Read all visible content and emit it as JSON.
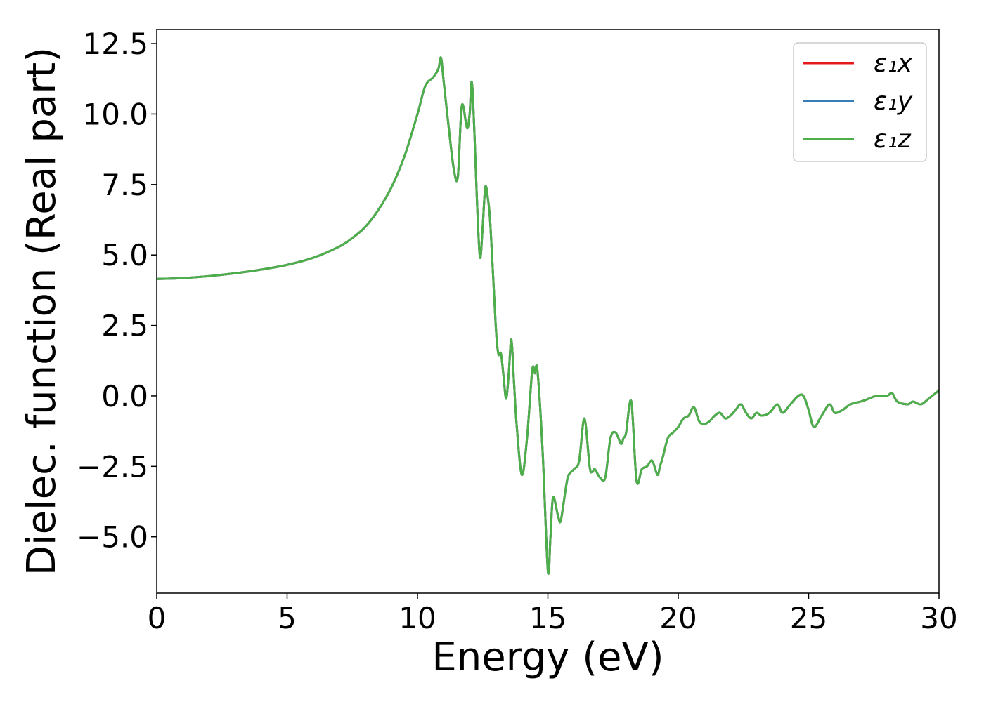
{
  "chart_data": {
    "type": "line",
    "title": "",
    "xlabel": "Energy (eV)",
    "ylabel": "Dielec. function (Real part)",
    "xlim": [
      0,
      30
    ],
    "ylim": [
      -7,
      13
    ],
    "xticks": [
      0,
      5,
      10,
      15,
      20,
      25,
      30
    ],
    "xtick_labels": [
      "0",
      "5",
      "10",
      "15",
      "20",
      "25",
      "30"
    ],
    "yticks": [
      -5,
      -2.5,
      0,
      2.5,
      5,
      7.5,
      10,
      12.5
    ],
    "ytick_labels": [
      "−5.0",
      "−2.5",
      "0.0",
      "2.5",
      "5.0",
      "7.5",
      "10.0",
      "12.5"
    ],
    "grid": false,
    "legend_position": "top-right",
    "series": [
      {
        "name": "ε₁x",
        "color": "#e41a1c",
        "x": [
          0,
          1,
          2,
          3,
          4,
          5,
          6,
          7,
          7.5,
          8,
          8.5,
          9,
          9.5,
          10,
          10.3,
          10.6,
          10.8,
          10.9,
          11.0,
          11.2,
          11.4,
          11.55,
          11.7,
          11.9,
          12.0,
          12.1,
          12.3,
          12.4,
          12.5,
          12.6,
          12.7,
          12.8,
          13.0,
          13.1,
          13.2,
          13.3,
          13.4,
          13.5,
          13.6,
          13.7,
          13.8,
          14.0,
          14.2,
          14.4,
          14.5,
          14.6,
          14.8,
          15.0,
          15.1,
          15.2,
          15.4,
          15.5,
          15.7,
          15.8,
          16.0,
          16.2,
          16.4,
          16.6,
          16.7,
          16.8,
          17.0,
          17.2,
          17.4,
          17.6,
          17.8,
          17.9,
          18.0,
          18.2,
          18.4,
          18.6,
          18.8,
          19.0,
          19.2,
          19.3,
          19.4,
          19.6,
          19.8,
          20.0,
          20.2,
          20.4,
          20.6,
          20.8,
          21.0,
          21.2,
          21.4,
          21.6,
          21.8,
          22.0,
          22.2,
          22.4,
          22.6,
          22.8,
          23.0,
          23.2,
          23.5,
          23.8,
          24.0,
          24.3,
          24.6,
          24.8,
          25.0,
          25.2,
          25.5,
          25.8,
          26.0,
          26.3,
          26.6,
          27.0,
          27.3,
          27.6,
          28.0,
          28.2,
          28.4,
          28.8,
          29.0,
          29.3,
          29.6,
          30.0
        ],
        "y": [
          4.15,
          4.18,
          4.25,
          4.35,
          4.48,
          4.65,
          4.9,
          5.3,
          5.6,
          6.0,
          6.6,
          7.4,
          8.5,
          10.0,
          11.0,
          11.3,
          11.6,
          12.0,
          11.2,
          9.5,
          8.0,
          7.8,
          10.3,
          9.5,
          10.0,
          11.0,
          6.5,
          4.9,
          6.0,
          7.4,
          7.0,
          6.0,
          2.5,
          1.5,
          1.5,
          0.7,
          -0.1,
          0.8,
          2.0,
          0.5,
          -1.0,
          -2.8,
          -1.5,
          0.9,
          0.8,
          0.9,
          -2.0,
          -6.2,
          -5.0,
          -3.6,
          -4.3,
          -4.4,
          -3.2,
          -2.8,
          -2.6,
          -2.3,
          -0.8,
          -2.5,
          -2.7,
          -2.6,
          -2.9,
          -2.9,
          -1.5,
          -1.3,
          -1.7,
          -1.5,
          -1.3,
          -0.2,
          -3.0,
          -2.6,
          -2.5,
          -2.3,
          -2.8,
          -2.5,
          -2.2,
          -1.5,
          -1.3,
          -1.1,
          -0.8,
          -0.7,
          -0.4,
          -0.9,
          -1.0,
          -0.9,
          -0.7,
          -0.6,
          -0.8,
          -0.7,
          -0.5,
          -0.3,
          -0.6,
          -0.8,
          -0.6,
          -0.7,
          -0.6,
          -0.3,
          -0.6,
          -0.3,
          0.0,
          0.0,
          -0.5,
          -1.1,
          -0.7,
          -0.3,
          -0.6,
          -0.5,
          -0.3,
          -0.2,
          -0.1,
          0.0,
          0.0,
          0.1,
          -0.2,
          -0.3,
          -0.2,
          -0.3,
          -0.1,
          0.2
        ]
      },
      {
        "name": "ε₁y",
        "color": "#377eb8",
        "x": [
          0,
          1,
          2,
          3,
          4,
          5,
          6,
          7,
          7.5,
          8,
          8.5,
          9,
          9.5,
          10,
          10.3,
          10.6,
          10.8,
          10.9,
          11.0,
          11.2,
          11.4,
          11.55,
          11.7,
          11.9,
          12.0,
          12.1,
          12.3,
          12.4,
          12.5,
          12.6,
          12.7,
          12.8,
          13.0,
          13.1,
          13.2,
          13.3,
          13.4,
          13.5,
          13.6,
          13.7,
          13.8,
          14.0,
          14.2,
          14.4,
          14.5,
          14.6,
          14.8,
          15.0,
          15.1,
          15.2,
          15.4,
          15.5,
          15.7,
          15.8,
          16.0,
          16.2,
          16.4,
          16.6,
          16.7,
          16.8,
          17.0,
          17.2,
          17.4,
          17.6,
          17.8,
          17.9,
          18.0,
          18.2,
          18.4,
          18.6,
          18.8,
          19.0,
          19.2,
          19.3,
          19.4,
          19.6,
          19.8,
          20.0,
          20.2,
          20.4,
          20.6,
          20.8,
          21.0,
          21.2,
          21.4,
          21.6,
          21.8,
          22.0,
          22.2,
          22.4,
          22.6,
          22.8,
          23.0,
          23.2,
          23.5,
          23.8,
          24.0,
          24.3,
          24.6,
          24.8,
          25.0,
          25.2,
          25.5,
          25.8,
          26.0,
          26.3,
          26.6,
          27.0,
          27.3,
          27.6,
          28.0,
          28.2,
          28.4,
          28.8,
          29.0,
          29.3,
          29.6,
          30.0
        ],
        "y": [
          4.15,
          4.18,
          4.25,
          4.35,
          4.48,
          4.65,
          4.9,
          5.3,
          5.6,
          6.0,
          6.6,
          7.4,
          8.5,
          10.0,
          11.0,
          11.3,
          11.6,
          12.0,
          11.2,
          9.5,
          8.0,
          7.8,
          10.3,
          9.5,
          10.0,
          11.0,
          6.5,
          4.9,
          6.0,
          7.4,
          7.0,
          6.0,
          2.5,
          1.5,
          1.5,
          0.7,
          -0.1,
          0.8,
          2.0,
          0.5,
          -1.0,
          -2.8,
          -1.5,
          0.9,
          0.8,
          0.9,
          -2.0,
          -6.2,
          -5.0,
          -3.6,
          -4.3,
          -4.4,
          -3.2,
          -2.8,
          -2.6,
          -2.3,
          -0.8,
          -2.5,
          -2.7,
          -2.6,
          -2.9,
          -2.9,
          -1.5,
          -1.3,
          -1.7,
          -1.5,
          -1.3,
          -0.2,
          -3.0,
          -2.6,
          -2.5,
          -2.3,
          -2.8,
          -2.5,
          -2.2,
          -1.5,
          -1.3,
          -1.1,
          -0.8,
          -0.7,
          -0.4,
          -0.9,
          -1.0,
          -0.9,
          -0.7,
          -0.6,
          -0.8,
          -0.7,
          -0.5,
          -0.3,
          -0.6,
          -0.8,
          -0.6,
          -0.7,
          -0.6,
          -0.3,
          -0.6,
          -0.3,
          0.0,
          0.0,
          -0.5,
          -1.1,
          -0.7,
          -0.3,
          -0.6,
          -0.5,
          -0.3,
          -0.2,
          -0.1,
          0.0,
          0.0,
          0.1,
          -0.2,
          -0.3,
          -0.2,
          -0.3,
          -0.1,
          0.2
        ]
      },
      {
        "name": "ε₁z",
        "color": "#4daf4a",
        "x": [
          0,
          1,
          2,
          3,
          4,
          5,
          6,
          7,
          7.5,
          8,
          8.5,
          9,
          9.5,
          10,
          10.3,
          10.6,
          10.8,
          10.9,
          11.0,
          11.2,
          11.4,
          11.55,
          11.7,
          11.9,
          12.0,
          12.1,
          12.3,
          12.4,
          12.5,
          12.6,
          12.7,
          12.8,
          13.0,
          13.1,
          13.2,
          13.3,
          13.4,
          13.5,
          13.6,
          13.7,
          13.8,
          14.0,
          14.2,
          14.4,
          14.5,
          14.6,
          14.8,
          15.0,
          15.1,
          15.2,
          15.4,
          15.5,
          15.7,
          15.8,
          16.0,
          16.2,
          16.4,
          16.6,
          16.7,
          16.8,
          17.0,
          17.2,
          17.4,
          17.6,
          17.8,
          17.9,
          18.0,
          18.2,
          18.4,
          18.6,
          18.8,
          19.0,
          19.2,
          19.3,
          19.4,
          19.6,
          19.8,
          20.0,
          20.2,
          20.4,
          20.6,
          20.8,
          21.0,
          21.2,
          21.4,
          21.6,
          21.8,
          22.0,
          22.2,
          22.4,
          22.6,
          22.8,
          23.0,
          23.2,
          23.5,
          23.8,
          24.0,
          24.3,
          24.6,
          24.8,
          25.0,
          25.2,
          25.5,
          25.8,
          26.0,
          26.3,
          26.6,
          27.0,
          27.3,
          27.6,
          28.0,
          28.2,
          28.4,
          28.8,
          29.0,
          29.3,
          29.6,
          30.0
        ],
        "y": [
          4.15,
          4.18,
          4.25,
          4.35,
          4.48,
          4.65,
          4.9,
          5.3,
          5.6,
          6.0,
          6.6,
          7.4,
          8.5,
          10.0,
          11.0,
          11.3,
          11.6,
          12.0,
          11.2,
          9.5,
          8.0,
          7.8,
          10.3,
          9.5,
          10.0,
          11.0,
          6.5,
          4.9,
          6.0,
          7.4,
          7.0,
          6.0,
          2.5,
          1.5,
          1.5,
          0.7,
          -0.1,
          0.8,
          2.0,
          0.5,
          -1.0,
          -2.8,
          -1.5,
          0.9,
          0.8,
          0.9,
          -2.0,
          -6.2,
          -5.0,
          -3.6,
          -4.3,
          -4.4,
          -3.2,
          -2.8,
          -2.6,
          -2.3,
          -0.8,
          -2.5,
          -2.7,
          -2.6,
          -2.9,
          -2.9,
          -1.5,
          -1.3,
          -1.7,
          -1.5,
          -1.3,
          -0.2,
          -3.0,
          -2.6,
          -2.5,
          -2.3,
          -2.8,
          -2.5,
          -2.2,
          -1.5,
          -1.3,
          -1.1,
          -0.8,
          -0.7,
          -0.4,
          -0.9,
          -1.0,
          -0.9,
          -0.7,
          -0.6,
          -0.8,
          -0.7,
          -0.5,
          -0.3,
          -0.6,
          -0.8,
          -0.6,
          -0.7,
          -0.6,
          -0.3,
          -0.6,
          -0.3,
          0.0,
          0.0,
          -0.5,
          -1.1,
          -0.7,
          -0.3,
          -0.6,
          -0.5,
          -0.3,
          -0.2,
          -0.1,
          0.0,
          0.0,
          0.1,
          -0.2,
          -0.3,
          -0.2,
          -0.3,
          -0.1,
          0.2
        ]
      }
    ]
  }
}
